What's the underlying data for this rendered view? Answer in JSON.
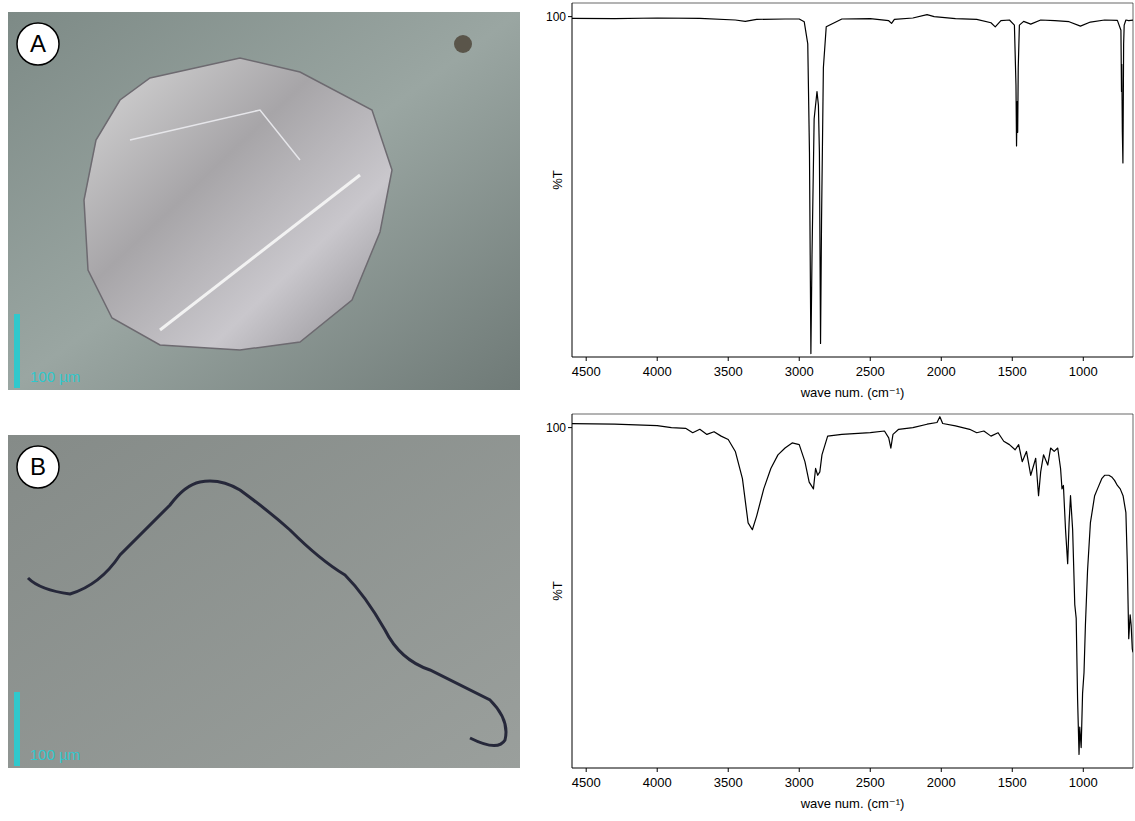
{
  "chart_data": [
    {
      "type": "line",
      "panel_label": "A",
      "scale_bar_label": "100 µm",
      "x_label": "wave num. (cm⁻¹)",
      "y_label": "%T",
      "xlim": [
        4600,
        650
      ],
      "xticks": [
        4500,
        4000,
        3500,
        3000,
        2500,
        2000,
        1500,
        1000
      ],
      "ylim": [
        0,
        104
      ],
      "yticks": [
        100
      ],
      "color": "#000000",
      "x": [
        4600,
        4300,
        4000,
        3700,
        3450,
        3380,
        3300,
        3100,
        3000,
        2965,
        2940,
        2928,
        2918,
        2910,
        2895,
        2875,
        2865,
        2858,
        2850,
        2843,
        2830,
        2810,
        2700,
        2500,
        2370,
        2350,
        2330,
        2200,
        2100,
        2050,
        1900,
        1750,
        1650,
        1620,
        1580,
        1520,
        1485,
        1474,
        1470,
        1466,
        1462,
        1458,
        1450,
        1420,
        1370,
        1300,
        1200,
        1100,
        1020,
        950,
        850,
        760,
        735,
        731,
        729,
        725,
        721,
        719,
        716,
        712,
        700,
        680,
        650
      ],
      "values": [
        99.5,
        99.4,
        99.6,
        99.5,
        99.0,
        98.6,
        99.2,
        99.3,
        99.3,
        98.5,
        92,
        60,
        1,
        30,
        70,
        78,
        74,
        60,
        4,
        40,
        85,
        97,
        99.3,
        99.4,
        98.8,
        98.0,
        99.2,
        99.6,
        100.6,
        100.0,
        99.4,
        99.2,
        98.2,
        97.0,
        98.8,
        99.0,
        97.5,
        80,
        62,
        75,
        66,
        85,
        97.5,
        98.6,
        97.8,
        99,
        98.8,
        98.5,
        97.2,
        98.4,
        99,
        98.9,
        96,
        78,
        86,
        66,
        57,
        70,
        92,
        97.5,
        99.0,
        98.8,
        99.0
      ]
    },
    {
      "type": "line",
      "panel_label": "B",
      "scale_bar_label": "100 µm",
      "x_label": "wave num. (cm⁻¹)",
      "y_label": "%T",
      "xlim": [
        4600,
        650
      ],
      "xticks": [
        4500,
        4000,
        3500,
        3000,
        2500,
        2000,
        1500,
        1000
      ],
      "ylim": [
        0,
        104
      ],
      "yticks": [
        100
      ],
      "color": "#000000",
      "x": [
        4600,
        4300,
        4000,
        3900,
        3800,
        3750,
        3700,
        3650,
        3600,
        3550,
        3500,
        3450,
        3400,
        3360,
        3330,
        3300,
        3250,
        3200,
        3150,
        3100,
        3050,
        3000,
        2960,
        2930,
        2900,
        2885,
        2870,
        2855,
        2840,
        2800,
        2700,
        2500,
        2400,
        2370,
        2355,
        2340,
        2300,
        2200,
        2100,
        2030,
        2010,
        1990,
        1900,
        1800,
        1750,
        1700,
        1650,
        1600,
        1560,
        1520,
        1480,
        1455,
        1430,
        1400,
        1370,
        1335,
        1315,
        1300,
        1280,
        1250,
        1230,
        1205,
        1180,
        1160,
        1150,
        1140,
        1125,
        1110,
        1100,
        1090,
        1075,
        1060,
        1050,
        1040,
        1030,
        1025,
        1015,
        1005,
        995,
        985,
        970,
        950,
        920,
        900,
        870,
        850,
        820,
        800,
        780,
        760,
        740,
        720,
        700,
        690,
        680,
        670,
        663,
        655,
        650
      ],
      "values": [
        101.2,
        101,
        100.6,
        100,
        99.8,
        98.5,
        99.5,
        98.0,
        98.8,
        97.5,
        96.5,
        93,
        85,
        72,
        70,
        74,
        82,
        88,
        92,
        94,
        95.5,
        95,
        90,
        84,
        82,
        88,
        86,
        87,
        92,
        97.5,
        98,
        98.5,
        99,
        97,
        94,
        98,
        99.5,
        100,
        101,
        101.5,
        103.2,
        101.2,
        100.5,
        99.5,
        98.5,
        99,
        97.5,
        98.5,
        96,
        95,
        93.5,
        95,
        90,
        93,
        86,
        91,
        80,
        87,
        92,
        89,
        94,
        93,
        94,
        88,
        82,
        83,
        70,
        60,
        72,
        80,
        70,
        48,
        44,
        20,
        4,
        12,
        6,
        22,
        28,
        42,
        58,
        72,
        80,
        82,
        85,
        86,
        86,
        85.5,
        84.5,
        83,
        82,
        80,
        75,
        60,
        38,
        45,
        42,
        35,
        34
      ]
    }
  ]
}
